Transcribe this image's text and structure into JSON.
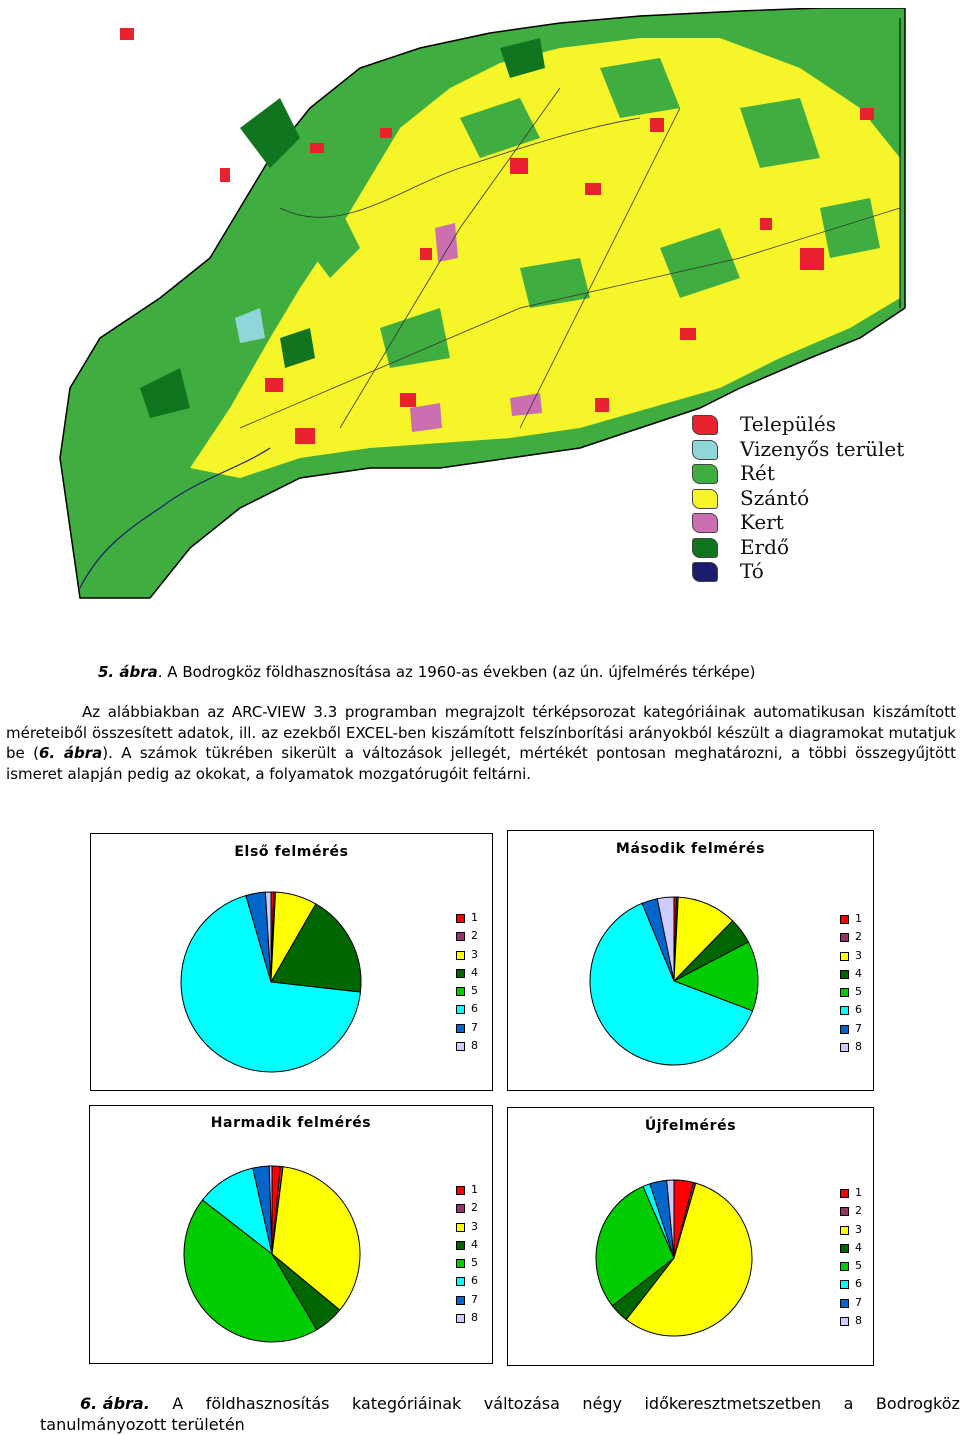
{
  "map": {
    "legend": [
      {
        "label": "Település",
        "color": "#e8232f"
      },
      {
        "label": "Vizenyős terület",
        "color": "#8fd6d8"
      },
      {
        "label": "Rét",
        "color": "#3fad3f"
      },
      {
        "label": "Szántó",
        "color": "#f5f52a"
      },
      {
        "label": "Kert",
        "color": "#cc6fb0"
      },
      {
        "label": "Erdő",
        "color": "#11751f"
      },
      {
        "label": "Tó",
        "color": "#1c1c6e"
      }
    ]
  },
  "fig5": {
    "number": "5. ábra",
    "text": ". A Bodrogköz földhasznosítása az 1960-as években (az ún. újfelmérés térképe)"
  },
  "body": {
    "text1": "Az alábbiakban az ARC-VIEW 3.3 programban megrajzolt térképsorozat kategóriáinak automatikusan kiszámított méreteiből összesített adatok, ill. az ezekből EXCEL-ben kiszámított felszínborítási arányokból készült a diagramokat mutatjuk be (",
    "ref": "6. ábra",
    "text2": "). A számok tükrében sikerült a változások jellegét, mértékét pontosan meghatározni, a többi összegyűjtött ismeret alapján pedig az okokat, a folyamatok mozgatórugóit feltárni."
  },
  "chart_data": [
    {
      "type": "pie",
      "title": "Első felmérés",
      "categories": [
        "1",
        "2",
        "3",
        "4",
        "5",
        "6",
        "7",
        "8"
      ],
      "values": [
        0.5,
        0.3,
        7.5,
        18.5,
        0,
        68.7,
        3.5,
        1.0
      ],
      "colors": [
        "#ff0000",
        "#993366",
        "#ffff00",
        "#006600",
        "#00cc00",
        "#00ffff",
        "#0066cc",
        "#ccccff"
      ]
    },
    {
      "type": "pie",
      "title": "Második felmérés",
      "categories": [
        "1",
        "2",
        "3",
        "4",
        "5",
        "6",
        "7",
        "8"
      ],
      "values": [
        0.5,
        0.3,
        11.5,
        5.0,
        13.5,
        63.0,
        3.0,
        3.2
      ],
      "colors": [
        "#ff0000",
        "#993366",
        "#ffff00",
        "#006600",
        "#00cc00",
        "#00ffff",
        "#0066cc",
        "#ccccff"
      ]
    },
    {
      "type": "pie",
      "title": "Harmadik felmérés",
      "categories": [
        "1",
        "2",
        "3",
        "4",
        "5",
        "6",
        "7",
        "8"
      ],
      "values": [
        1.5,
        0.5,
        34.0,
        5.5,
        44.0,
        11.0,
        3.0,
        0.5
      ],
      "colors": [
        "#ff0000",
        "#993366",
        "#ffff00",
        "#006600",
        "#00cc00",
        "#00ffff",
        "#0066cc",
        "#ccccff"
      ]
    },
    {
      "type": "pie",
      "title": "Újfelmérés",
      "categories": [
        "1",
        "2",
        "3",
        "4",
        "5",
        "6",
        "7",
        "8"
      ],
      "values": [
        4.0,
        0.5,
        56.0,
        4.0,
        29.0,
        1.5,
        3.5,
        1.5
      ],
      "colors": [
        "#ff0000",
        "#993366",
        "#ffff00",
        "#006600",
        "#00cc00",
        "#00ffff",
        "#0066cc",
        "#ccccff"
      ]
    }
  ],
  "fig6": {
    "number": "6. ábra.",
    "words": [
      "A",
      "földhasznosítás",
      "kategóriáinak",
      "változása",
      "négy",
      "időkeresztmetszetben",
      "a",
      "Bodrogköz"
    ],
    "line2": "tanulmányozott területén"
  }
}
